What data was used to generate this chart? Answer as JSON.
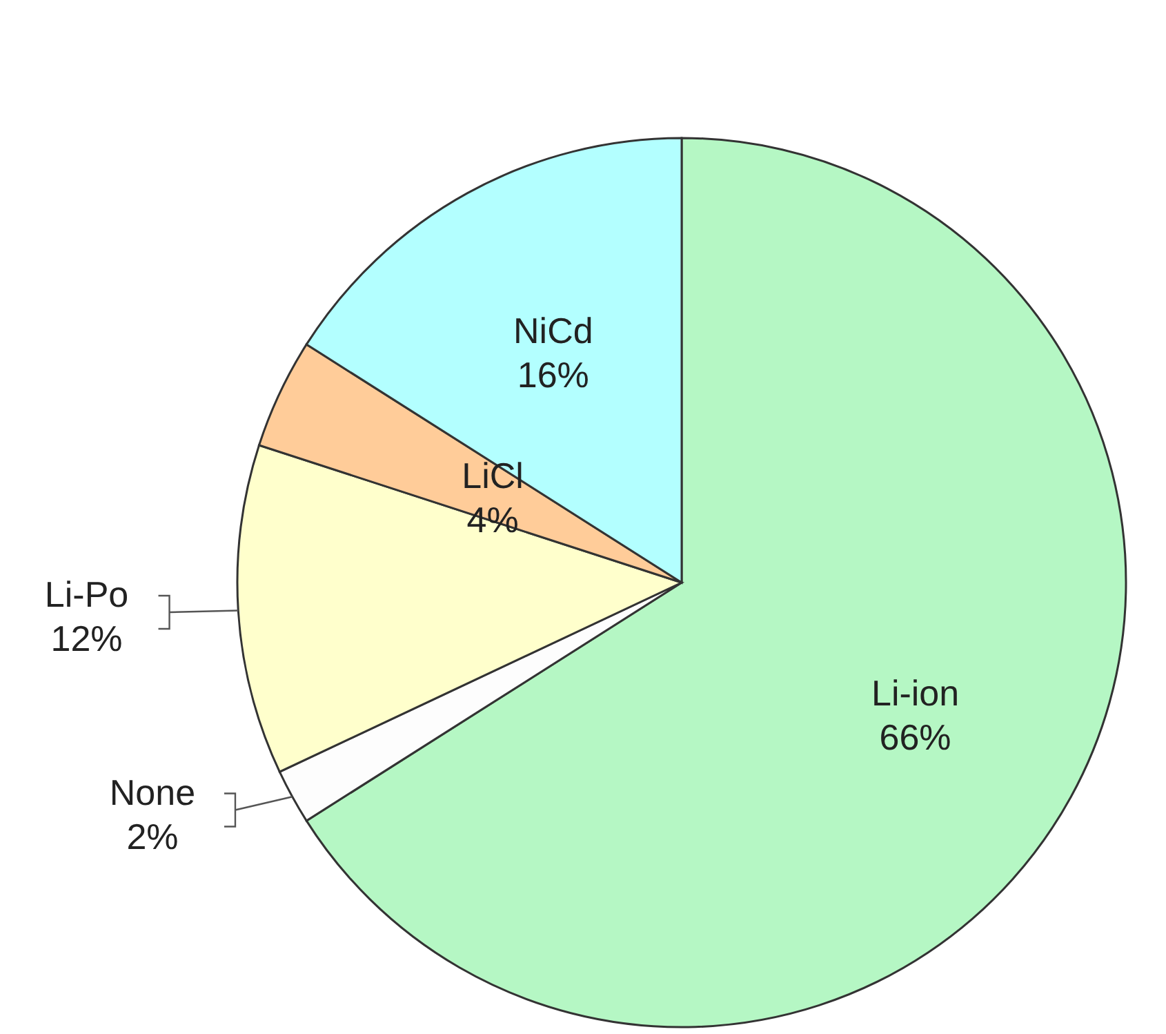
{
  "chart_data": {
    "type": "pie",
    "categories": [
      "Li-ion",
      "None",
      "Li-Po",
      "LiCl",
      "NiCd"
    ],
    "values": [
      66,
      2,
      12,
      4,
      16
    ],
    "colors": [
      "#b5f7c4",
      "#fdfdfd",
      "#ffffcc",
      "#ffcc99",
      "#b3ffff"
    ],
    "value_labels": [
      "66%",
      "2%",
      "12%",
      "4%",
      "16%"
    ],
    "legend": false
  }
}
